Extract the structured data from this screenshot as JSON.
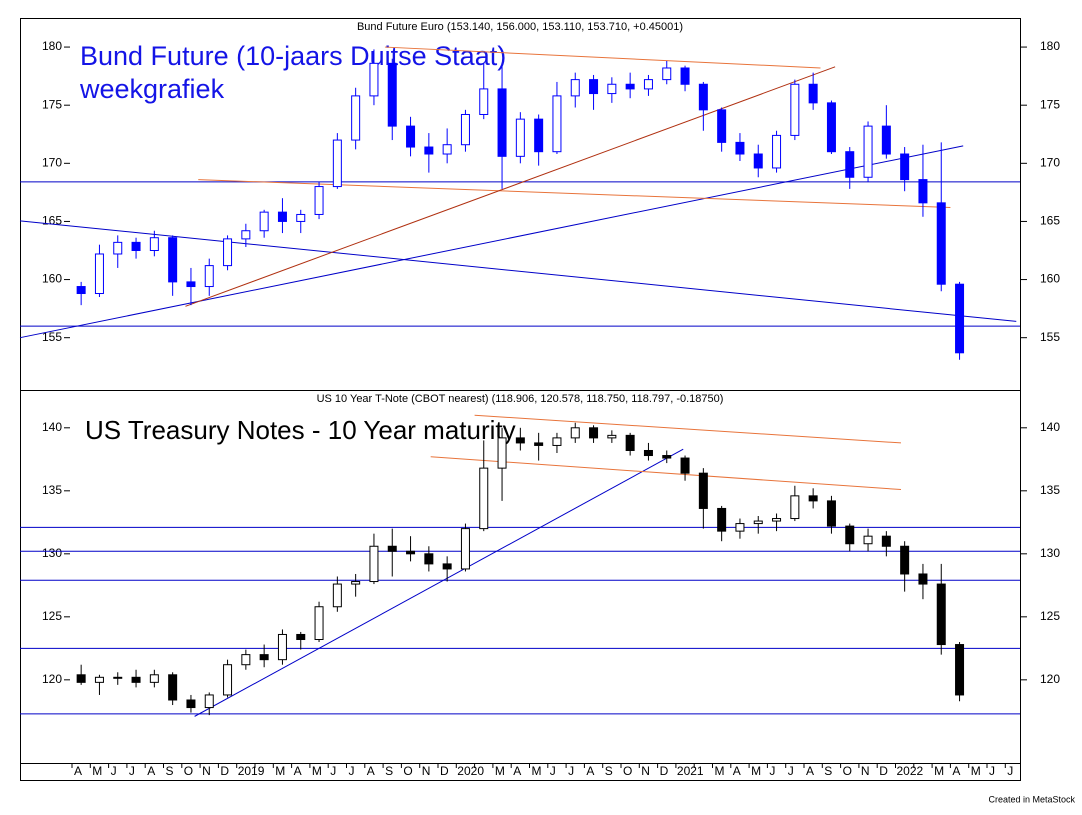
{
  "chart_data": [
    {
      "type": "candlestick",
      "title": "Bund Future Euro (153.140, 156.000, 153.110, 153.710, +0.45001)",
      "annotation": [
        "Bund Future (10-jaars Duitse Staat)",
        "weekgrafiek"
      ],
      "annotation_color": "#1414e6",
      "color": "#0000ff",
      "ylim": [
        150.5,
        182.5
      ],
      "yticks": [
        155,
        160,
        165,
        170,
        175,
        180
      ],
      "open": [
        159.4,
        158.8,
        162.2,
        163.2,
        162.5,
        163.6,
        159.8,
        159.4,
        161.2,
        163.5,
        164.2,
        165.8,
        165.0,
        165.6,
        168.0,
        172.0,
        175.8,
        178.6,
        173.2,
        171.4,
        170.8,
        171.6,
        174.2,
        176.4,
        170.6,
        173.8,
        171.0,
        175.8,
        177.2,
        176.0,
        176.8,
        176.4,
        177.2,
        178.2,
        176.8,
        174.6,
        171.8,
        170.8,
        169.6,
        172.4,
        176.8,
        175.2,
        171.0,
        168.8,
        173.2,
        170.8,
        168.6,
        166.6,
        159.6,
        null,
        null,
        null
      ],
      "high": [
        159.8,
        163.0,
        163.8,
        163.6,
        164.2,
        163.8,
        161.0,
        161.8,
        163.8,
        164.8,
        166.0,
        167.0,
        166.0,
        168.4,
        172.6,
        176.5,
        179.8,
        179.0,
        174.0,
        172.6,
        173.0,
        174.6,
        178.6,
        178.4,
        174.4,
        174.2,
        177.0,
        177.8,
        177.6,
        177.4,
        177.8,
        177.6,
        178.8,
        178.4,
        177.0,
        174.8,
        172.6,
        171.6,
        172.8,
        177.2,
        177.8,
        175.4,
        171.4,
        173.6,
        175.0,
        171.4,
        171.6,
        171.8,
        159.8,
        null,
        null,
        null
      ],
      "low": [
        157.8,
        158.5,
        161.0,
        161.8,
        162.0,
        158.6,
        157.8,
        158.6,
        160.8,
        162.8,
        163.6,
        164.0,
        164.0,
        165.2,
        167.8,
        171.2,
        175.0,
        172.0,
        170.6,
        169.2,
        170.0,
        171.0,
        173.8,
        167.8,
        170.0,
        169.8,
        170.8,
        174.8,
        174.6,
        175.2,
        175.6,
        175.8,
        176.8,
        176.2,
        172.8,
        171.0,
        170.2,
        168.8,
        169.2,
        172.0,
        174.6,
        170.8,
        167.8,
        168.4,
        170.4,
        167.6,
        165.4,
        159.0,
        153.1,
        null,
        null,
        null
      ],
      "close": [
        158.8,
        162.2,
        163.2,
        162.5,
        163.6,
        159.8,
        159.4,
        161.2,
        163.5,
        164.2,
        165.8,
        165.0,
        165.6,
        168.0,
        172.0,
        175.8,
        178.6,
        173.2,
        171.4,
        170.8,
        171.6,
        174.2,
        176.4,
        170.6,
        173.8,
        171.0,
        175.8,
        177.2,
        176.0,
        176.8,
        176.4,
        177.2,
        178.2,
        176.8,
        174.6,
        171.8,
        170.8,
        169.6,
        172.4,
        176.8,
        175.2,
        171.0,
        168.8,
        173.2,
        170.8,
        168.6,
        166.6,
        159.6,
        153.7,
        null,
        null,
        null
      ],
      "hlines": {
        "color": "#0000c8",
        "values": [
          168.4,
          156.0
        ]
      },
      "trendlines": [
        {
          "color": "#0000c8",
          "x": [
            -2.9,
            51.6
          ],
          "y": [
            165.05,
            156.4
          ]
        },
        {
          "color": "#0000c8",
          "x": [
            -2.9,
            48.7
          ],
          "y": [
            155.0,
            171.5
          ]
        },
        {
          "color": "#e8743b",
          "x": [
            17.1,
            40.9
          ],
          "y": [
            180.0,
            178.2
          ]
        },
        {
          "color": "#e8743b",
          "x": [
            6.9,
            48.0
          ],
          "y": [
            168.6,
            166.2
          ]
        },
        {
          "color": "#b03010",
          "x": [
            6.2,
            41.7
          ],
          "y": [
            157.7,
            178.3
          ]
        }
      ]
    },
    {
      "type": "candlestick",
      "title": "US 10 Year T-Note (CBOT nearest) (118.906, 120.578, 118.750, 118.797, -0.18750)",
      "annotation": [
        "US Treasury Notes - 10 Year maturity"
      ],
      "annotation_color": "#000000",
      "color": "#000000",
      "ylim": [
        113.4,
        143
      ],
      "yticks": [
        120,
        125,
        130,
        135,
        140
      ],
      "categories": [
        "A",
        "M",
        "J",
        "J",
        "A",
        "S",
        "O",
        "N",
        "D",
        "2019",
        null,
        "M",
        "A",
        "M",
        "J",
        "J",
        "A",
        "S",
        "O",
        "N",
        "D",
        "2020",
        null,
        "M",
        "A",
        "M",
        "J",
        "J",
        "A",
        "S",
        "O",
        "N",
        "D",
        "2021",
        null,
        "M",
        "A",
        "M",
        "J",
        "J",
        "A",
        "S",
        "O",
        "N",
        "D",
        "2022",
        null,
        "M",
        "A",
        "M",
        "J",
        "J"
      ],
      "open": [
        120.4,
        119.8,
        120.2,
        120.2,
        119.8,
        120.4,
        118.4,
        117.8,
        118.8,
        121.2,
        122.0,
        121.6,
        123.6,
        123.2,
        125.8,
        127.6,
        127.8,
        130.6,
        130.2,
        130.0,
        129.2,
        128.8,
        132.0,
        136.8,
        139.2,
        138.8,
        138.6,
        139.2,
        140.0,
        139.2,
        139.4,
        138.2,
        137.8,
        137.6,
        136.4,
        133.6,
        131.8,
        132.4,
        132.6,
        132.8,
        134.6,
        134.2,
        132.2,
        130.8,
        131.4,
        130.6,
        128.4,
        127.6,
        122.8,
        null,
        null,
        null
      ],
      "high": [
        121.2,
        120.4,
        120.6,
        120.8,
        120.8,
        120.6,
        118.8,
        119.0,
        121.6,
        122.4,
        122.8,
        124.0,
        123.8,
        126.2,
        128.2,
        128.4,
        131.6,
        132.0,
        131.4,
        130.6,
        129.8,
        132.4,
        139.0,
        140.0,
        140.0,
        139.6,
        139.6,
        140.4,
        140.2,
        139.8,
        139.6,
        138.8,
        138.2,
        137.8,
        136.8,
        133.8,
        132.8,
        133.0,
        133.2,
        135.4,
        135.2,
        134.6,
        132.4,
        132.0,
        131.8,
        131.0,
        129.2,
        129.2,
        123.0,
        null,
        null,
        null
      ],
      "low": [
        119.6,
        118.8,
        119.6,
        119.4,
        119.4,
        118.0,
        117.4,
        117.2,
        118.6,
        120.8,
        121.0,
        121.2,
        122.4,
        123.0,
        125.4,
        126.6,
        127.6,
        128.2,
        129.4,
        128.6,
        127.8,
        128.6,
        131.8,
        134.2,
        138.2,
        137.4,
        138.0,
        138.8,
        138.8,
        138.8,
        137.8,
        137.4,
        137.2,
        135.8,
        132.0,
        131.0,
        131.2,
        131.6,
        131.8,
        132.6,
        133.6,
        131.6,
        130.2,
        130.2,
        129.8,
        127.0,
        126.4,
        122.0,
        118.3,
        null,
        null,
        null
      ],
      "close": [
        119.8,
        120.2,
        120.2,
        119.8,
        120.4,
        118.4,
        117.8,
        118.8,
        121.2,
        122.0,
        121.6,
        123.6,
        123.2,
        125.8,
        127.6,
        127.8,
        130.6,
        130.2,
        130.0,
        129.2,
        128.8,
        132.0,
        136.8,
        139.2,
        138.8,
        138.6,
        139.2,
        140.0,
        139.2,
        139.4,
        138.2,
        137.8,
        137.6,
        136.4,
        133.6,
        131.8,
        132.4,
        132.6,
        132.8,
        134.6,
        134.2,
        132.2,
        130.8,
        131.4,
        130.6,
        128.4,
        127.6,
        122.8,
        118.8,
        null,
        null,
        null
      ],
      "hlines": {
        "color": "#0000c8",
        "values": [
          132.1,
          130.2,
          127.9,
          122.5,
          117.3
        ]
      },
      "trendlines": [
        {
          "color": "#0000c8",
          "x": [
            6.7,
            33.4
          ],
          "y": [
            117.1,
            138.3
          ]
        },
        {
          "color": "#e8743b",
          "x": [
            22.0,
            45.3
          ],
          "y": [
            141.0,
            138.8
          ]
        },
        {
          "color": "#e8743b",
          "x": [
            19.6,
            45.3
          ],
          "y": [
            137.7,
            135.1
          ]
        }
      ]
    }
  ],
  "footer": "Created in MetaStock"
}
